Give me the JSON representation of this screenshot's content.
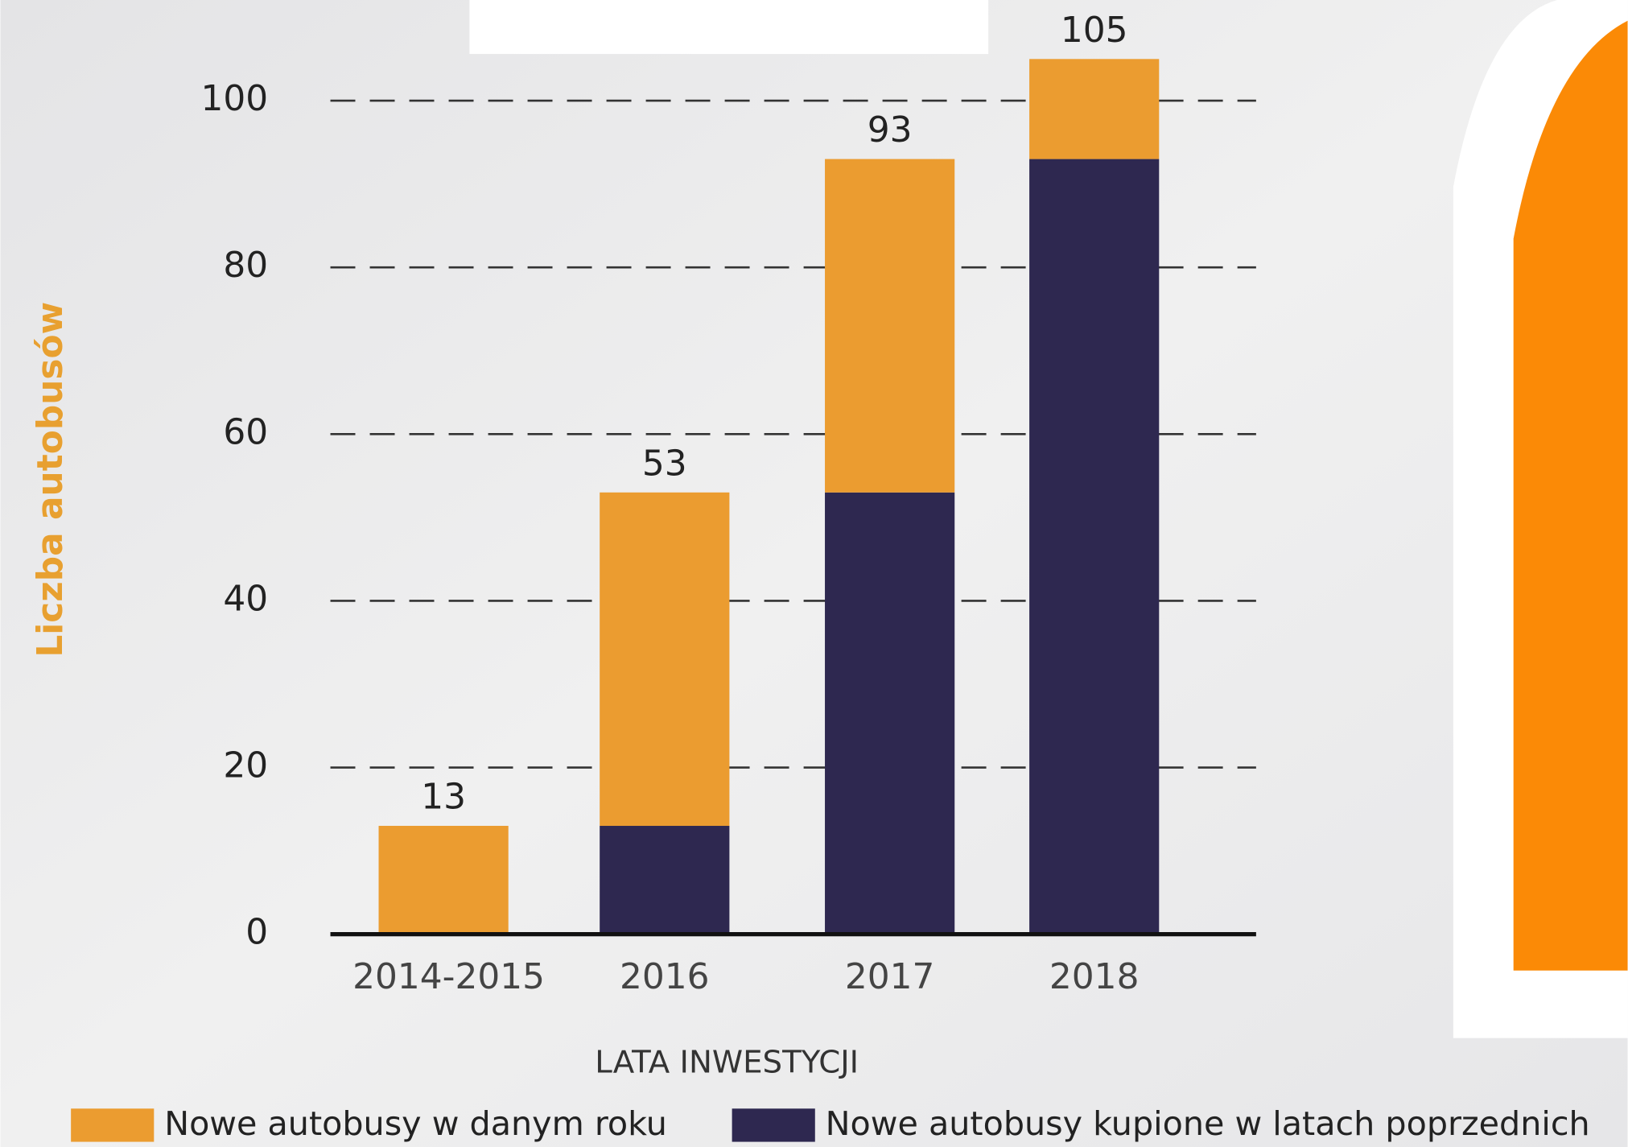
{
  "chart_data": {
    "type": "stacked_bar",
    "y_label": "Liczba autobusów",
    "x_label": "LATA INWESTYCJI",
    "categories": [
      "2014-2015",
      "2016",
      "2017",
      "2018"
    ],
    "series": [
      {
        "name": "Nowe autobusy w danym roku",
        "color": "#eb9c30",
        "values": [
          13,
          40,
          40,
          12
        ]
      },
      {
        "name": "Nowe autobusy kupione w latach poprzednich",
        "color": "#2e2850",
        "values": [
          0,
          13,
          53,
          93
        ]
      }
    ],
    "totals": [
      13,
      53,
      93,
      105
    ],
    "ylim": [
      0,
      110
    ],
    "yticks": [
      0,
      20,
      40,
      60,
      80,
      100
    ],
    "grid": true
  }
}
